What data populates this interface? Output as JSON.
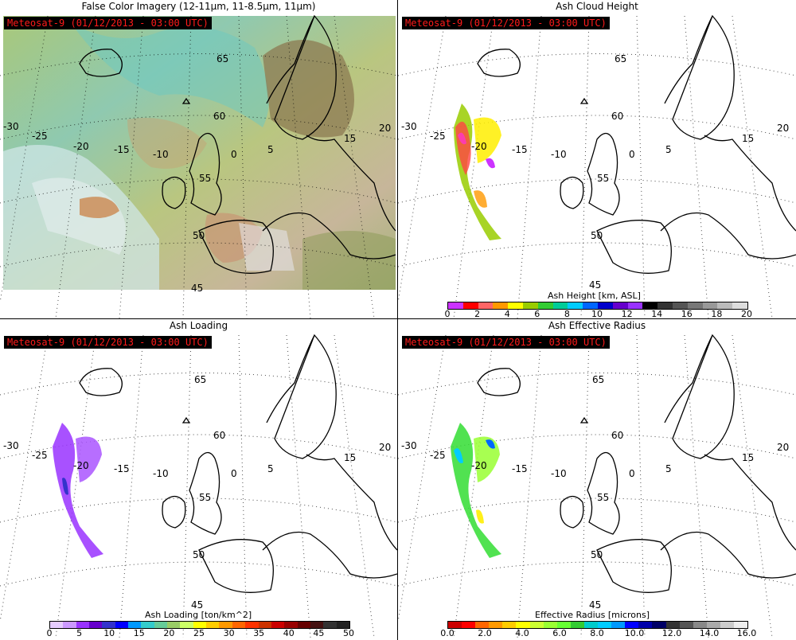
{
  "badge_text": "Meteosat-9  (01/12/2013 - 03:00 UTC)",
  "panels": [
    {
      "id": "false-color",
      "title": "False Color Imagery (12-11μm, 11-8.5μm, 11μm)",
      "badge": "Meteosat-9  (01/12/2013 - 03:00 UTC)",
      "lat_labels": [
        "65",
        "60",
        "55",
        "50",
        "45"
      ],
      "lon_labels": [
        "-30",
        "-25",
        "-20",
        "-15",
        "-10",
        "0",
        "5",
        "15",
        "20"
      ]
    },
    {
      "id": "ash-height",
      "title": "Ash Cloud Height",
      "badge": "Meteosat-9  (01/12/2013 - 03:00 UTC)",
      "lat_labels": [
        "65",
        "60",
        "55",
        "50",
        "45"
      ],
      "lon_labels": [
        "-30",
        "-25",
        "-20",
        "-15",
        "-10",
        "0",
        "5",
        "15",
        "20"
      ],
      "colorbar": {
        "label": "Ash Height [km, ASL]",
        "ticks": [
          "0",
          "2",
          "4",
          "6",
          "8",
          "10",
          "12",
          "14",
          "16",
          "18",
          "20"
        ],
        "colors": [
          "#cc33ff",
          "#ff0000",
          "#ff6666",
          "#ff9900",
          "#ffff00",
          "#99cc00",
          "#33cc33",
          "#00cc99",
          "#00ccff",
          "#0066ff",
          "#0000cc",
          "#6600cc",
          "#9933ff",
          "#000000",
          "#333333",
          "#555555",
          "#777777",
          "#999999",
          "#bbbbbb",
          "#dddddd"
        ]
      }
    },
    {
      "id": "ash-loading",
      "title": "Ash Loading",
      "badge": "Meteosat-9  (01/12/2013 - 03:00 UTC)",
      "lat_labels": [
        "65",
        "60",
        "55",
        "50",
        "45"
      ],
      "lon_labels": [
        "-30",
        "-25",
        "-20",
        "-15",
        "-10",
        "0",
        "5",
        "15",
        "20"
      ],
      "colorbar": {
        "label": "Ash Loading [ton/km^2]",
        "ticks": [
          "0",
          "5",
          "10",
          "15",
          "20",
          "25",
          "30",
          "35",
          "40",
          "45",
          "50"
        ],
        "colors": [
          "#e6ccff",
          "#cc99ff",
          "#9933ff",
          "#6600cc",
          "#3333cc",
          "#0000ff",
          "#0099ff",
          "#33cccc",
          "#66cc99",
          "#99cc66",
          "#ccff66",
          "#ffff00",
          "#ffcc00",
          "#ff9900",
          "#ff6600",
          "#ff3300",
          "#cc3300",
          "#cc0000",
          "#990000",
          "#660000",
          "#441111",
          "#333333",
          "#222222"
        ]
      }
    },
    {
      "id": "effective-radius",
      "title": "Ash Effective Radius",
      "badge": "Meteosat-9  (01/12/2013 - 03:00 UTC)",
      "lat_labels": [
        "65",
        "60",
        "55",
        "50",
        "45"
      ],
      "lon_labels": [
        "-30",
        "-25",
        "-20",
        "-15",
        "-10",
        "0",
        "5",
        "15",
        "20"
      ],
      "colorbar": {
        "label": "Effective Radius [microns]",
        "ticks": [
          "0.0",
          "2.0",
          "4.0",
          "6.0",
          "8.0",
          "10.0",
          "12.0",
          "14.0",
          "16.0"
        ],
        "colors": [
          "#cc0000",
          "#ff0000",
          "#ff6600",
          "#ff9900",
          "#ffcc00",
          "#ffff00",
          "#ccff33",
          "#99ff33",
          "#66ff33",
          "#33cc33",
          "#00cccc",
          "#00ccff",
          "#0099ff",
          "#0000ff",
          "#0000aa",
          "#000066",
          "#333333",
          "#555555",
          "#888888",
          "#aaaaaa",
          "#cccccc",
          "#eeeeee"
        ]
      }
    }
  ]
}
